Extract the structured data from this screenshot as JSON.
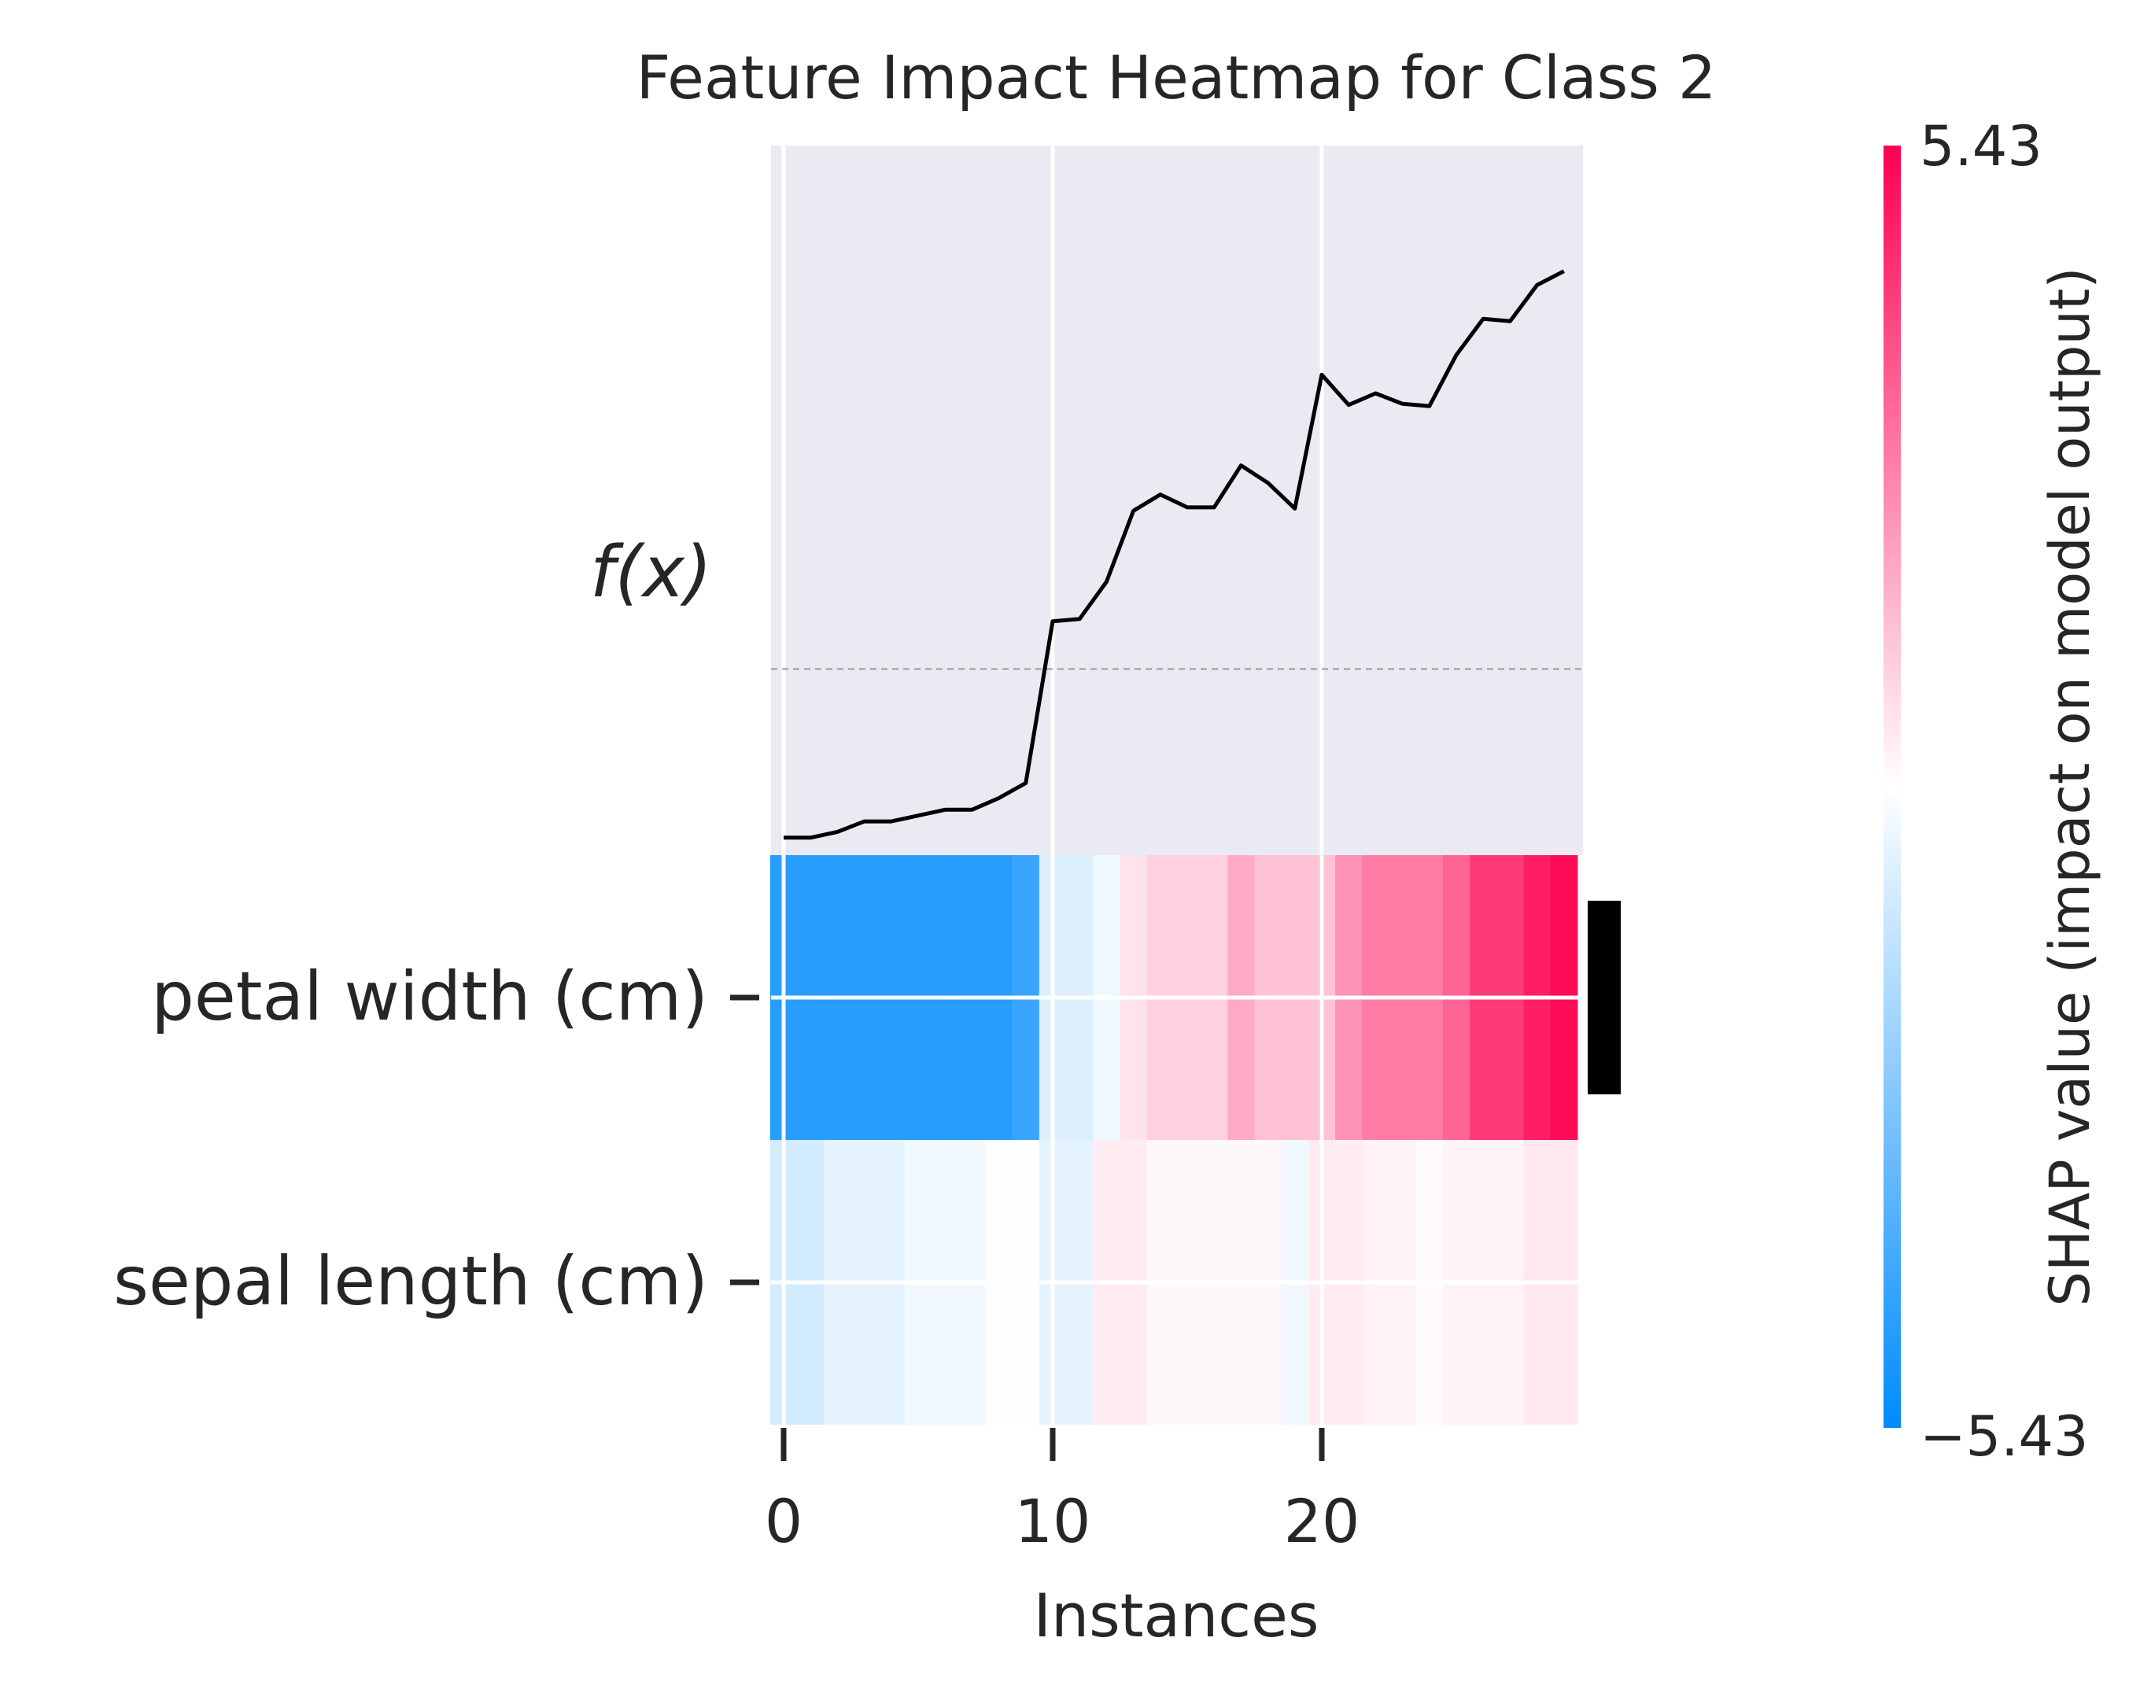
{
  "chart_data": {
    "type": "heatmap",
    "title": "Feature Impact Heatmap for Class 2",
    "xlabel": "Instances",
    "fx_label": "f(x)",
    "x_ticks": [
      0,
      10,
      20
    ],
    "instances": 30,
    "colorbar": {
      "label": "SHAP value (impact on model output)",
      "max_label": "5.43",
      "min_label": "−5.43",
      "vmin": -5.43,
      "vmax": 5.43,
      "low_color": "#008bfb",
      "mid_color": "#ffffff",
      "high_color": "#ff0051"
    },
    "fx_values": [
      -1.45,
      -1.45,
      -1.4,
      -1.31,
      -1.31,
      -1.26,
      -1.21,
      -1.21,
      -1.11,
      -0.98,
      0.41,
      0.43,
      0.75,
      1.36,
      1.5,
      1.39,
      1.39,
      1.75,
      1.6,
      1.38,
      2.53,
      2.27,
      2.37,
      2.28,
      2.26,
      2.7,
      3.01,
      2.99,
      3.3,
      3.42
    ],
    "fx_baseline": 0.0,
    "fx_ylim": [
      -1.6,
      4.5
    ],
    "features": [
      {
        "name": "petal width (cm)",
        "values": [
          -4.6,
          -4.6,
          -4.6,
          -4.6,
          -4.6,
          -4.6,
          -4.6,
          -4.6,
          -4.6,
          -4.2,
          -0.75,
          -0.75,
          -0.35,
          0.6,
          1.0,
          1.0,
          1.0,
          1.8,
          1.3,
          1.3,
          1.3,
          2.3,
          2.8,
          2.8,
          2.8,
          3.3,
          4.2,
          4.2,
          4.8,
          5.2
        ],
        "bar_importance": 0.84
      },
      {
        "name": "sepal length (cm)",
        "values": [
          -0.95,
          -0.95,
          -0.55,
          -0.55,
          -0.55,
          -0.3,
          -0.3,
          -0.3,
          -0.05,
          -0.05,
          -0.55,
          -0.55,
          0.4,
          0.4,
          0.15,
          0.15,
          0.15,
          0.15,
          0.15,
          -0.3,
          0.4,
          0.4,
          0.25,
          0.25,
          0.1,
          0.25,
          0.25,
          0.25,
          0.5,
          0.5
        ],
        "bar_importance": 0.0
      }
    ]
  }
}
